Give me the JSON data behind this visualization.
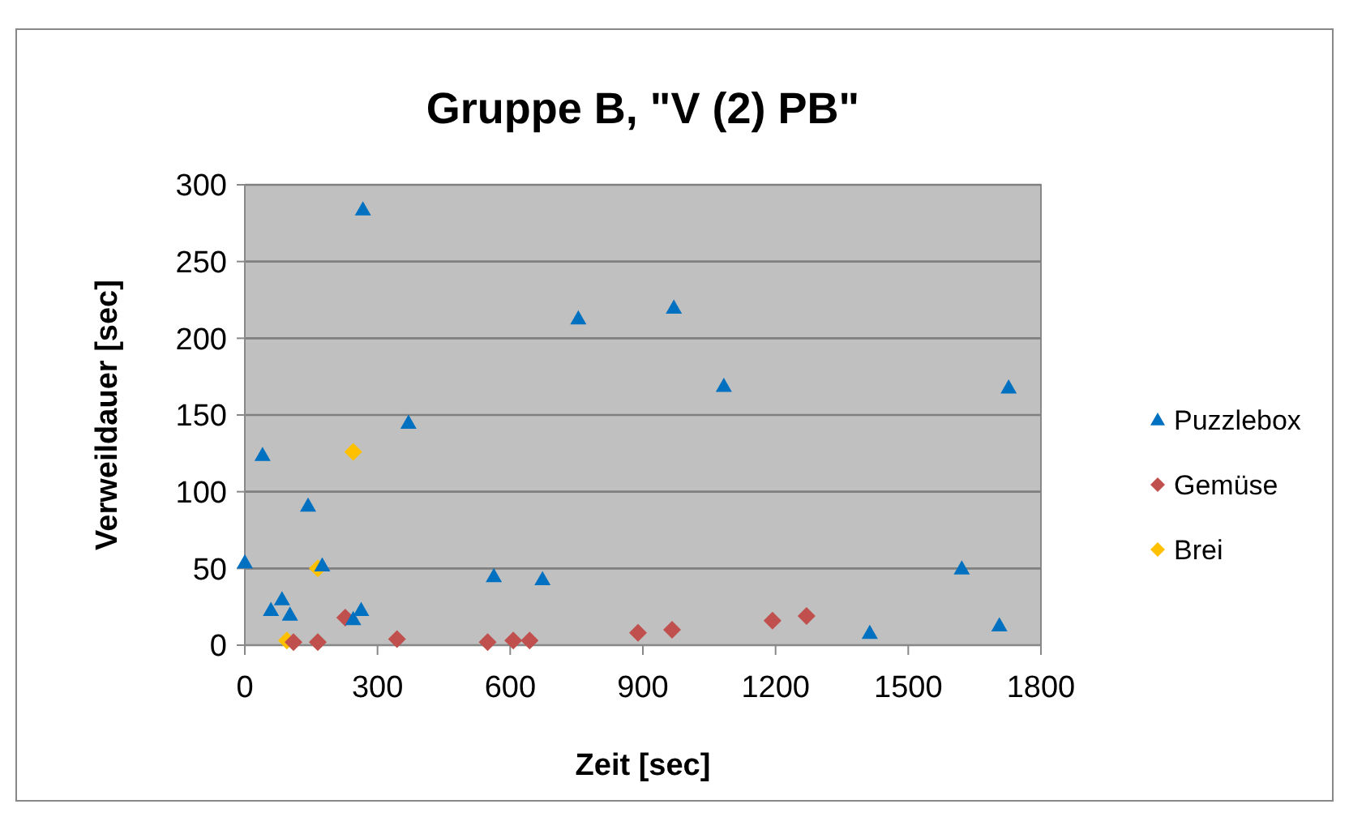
{
  "chart_data": {
    "type": "scatter",
    "title": "Gruppe B, \"V (2) PB\"",
    "xlabel": "Zeit [sec]",
    "ylabel": "Verweildauer [sec]",
    "xlim": [
      0,
      1800
    ],
    "xticks": [
      0,
      300,
      600,
      900,
      1200,
      1500,
      1800
    ],
    "ylim": [
      0,
      300
    ],
    "yticks": [
      0,
      50,
      100,
      150,
      200,
      250,
      300
    ],
    "grid": "y",
    "legend": "right",
    "series": [
      {
        "name": "Puzzlebox",
        "color": "#0070c0",
        "marker": "triangle",
        "x": [
          0,
          40,
          59,
          84,
          102,
          143,
          175,
          245,
          263,
          267,
          370,
          563,
          673,
          754,
          970,
          1083,
          1413,
          1621,
          1706,
          1727
        ],
        "values": [
          54,
          124,
          23,
          30,
          20,
          91,
          52,
          17,
          23,
          284,
          145,
          45,
          43,
          213,
          220,
          169,
          8,
          50,
          13,
          168
        ]
      },
      {
        "name": "Gemüse",
        "color": "#c0504d",
        "marker": "diamond",
        "x": [
          110,
          165,
          227,
          344,
          549,
          607,
          644,
          889,
          966,
          1193,
          1270
        ],
        "values": [
          2,
          2,
          18,
          4,
          2,
          3,
          3,
          8,
          10,
          16,
          19
        ]
      },
      {
        "name": "Brei",
        "color": "#ffc000",
        "marker": "diamond",
        "x": [
          95,
          165,
          245
        ],
        "values": [
          3,
          50,
          126
        ]
      }
    ]
  }
}
